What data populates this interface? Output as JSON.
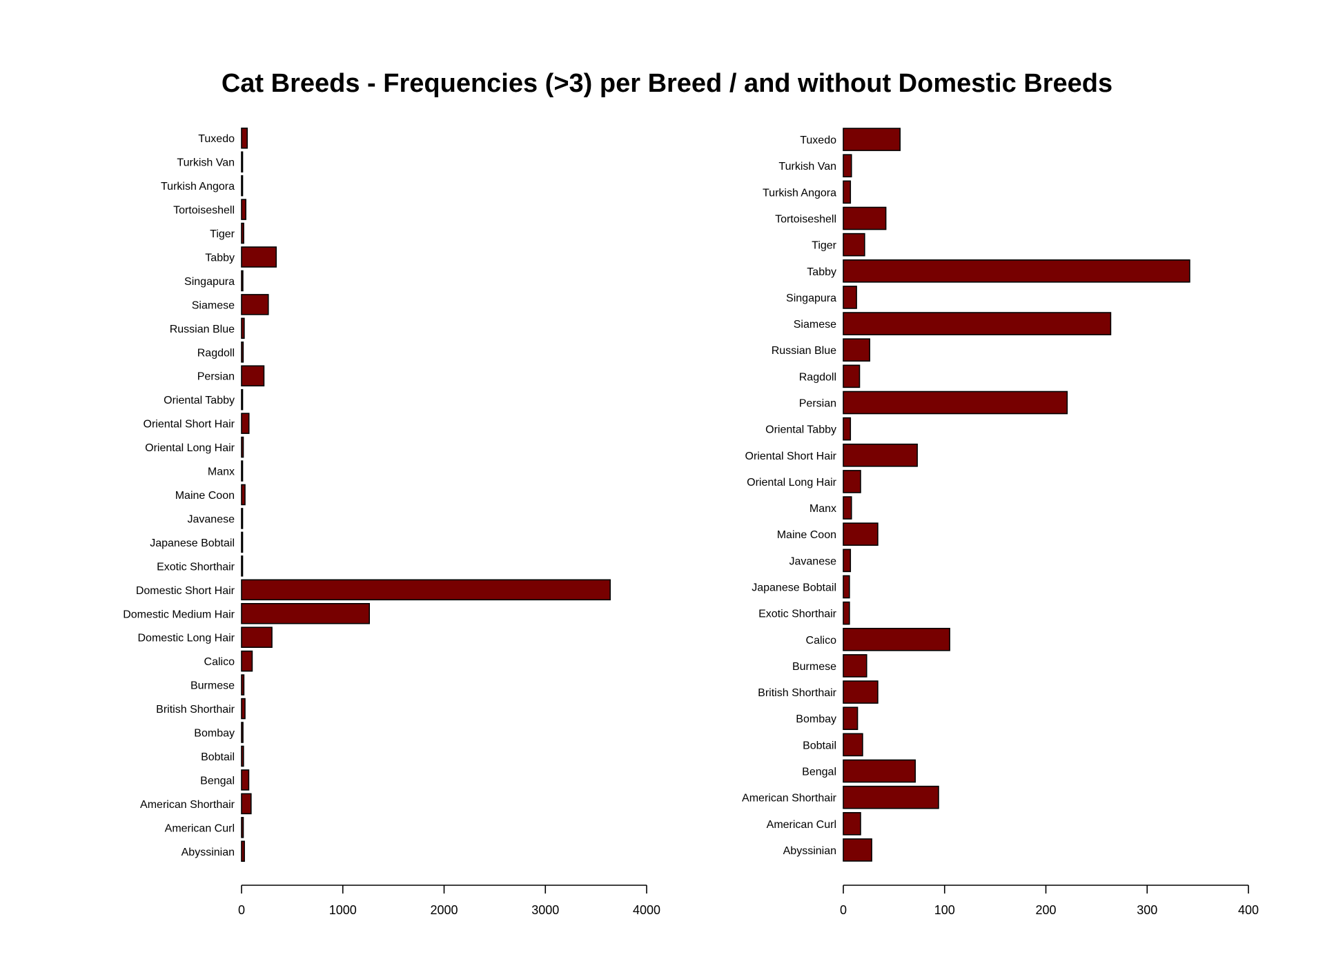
{
  "chart_data": {
    "type": "bar",
    "orientation": "horizontal",
    "title": "Cat Breeds - Frequencies (>3) per Breed / and without Domestic Breeds",
    "bar_color": "#770000",
    "bar_border_color": "#000000",
    "grid": false,
    "legend": "none",
    "panels": [
      {
        "name": "",
        "categories": [
          "Tuxedo",
          "Turkish Van",
          "Turkish Angora",
          "Tortoiseshell",
          "Tiger",
          "Tabby",
          "Singapura",
          "Siamese",
          "Russian Blue",
          "Ragdoll",
          "Persian",
          "Oriental Tabby",
          "Oriental Short Hair",
          "Oriental Long Hair",
          "Manx",
          "Maine Coon",
          "Javanese",
          "Japanese Bobtail",
          "Exotic Shorthair",
          "Domestic Short Hair",
          "Domestic Medium Hair",
          "Domestic Long Hair",
          "Calico",
          "Burmese",
          "British Shorthair",
          "Bombay",
          "Bobtail",
          "Bengal",
          "American Shorthair",
          "American Curl",
          "Abyssinian"
        ],
        "values": [
          56,
          8,
          7,
          42,
          21,
          342,
          13,
          264,
          26,
          16,
          221,
          7,
          73,
          17,
          8,
          34,
          7,
          6,
          6,
          3640,
          1262,
          300,
          105,
          23,
          34,
          14,
          19,
          71,
          94,
          17,
          28
        ],
        "xlim": [
          0,
          4000
        ],
        "xticks": [
          "0",
          "1000",
          "2000",
          "3000",
          "4000"
        ],
        "xlabel": "",
        "ylabel": ""
      },
      {
        "name": "",
        "categories": [
          "Tuxedo",
          "Turkish Van",
          "Turkish Angora",
          "Tortoiseshell",
          "Tiger",
          "Tabby",
          "Singapura",
          "Siamese",
          "Russian Blue",
          "Ragdoll",
          "Persian",
          "Oriental Tabby",
          "Oriental Short Hair",
          "Oriental Long Hair",
          "Manx",
          "Maine Coon",
          "Javanese",
          "Japanese Bobtail",
          "Exotic Shorthair",
          "Calico",
          "Burmese",
          "British Shorthair",
          "Bombay",
          "Bobtail",
          "Bengal",
          "American Shorthair",
          "American Curl",
          "Abyssinian"
        ],
        "values": [
          56,
          8,
          7,
          42,
          21,
          342,
          13,
          264,
          26,
          16,
          221,
          7,
          73,
          17,
          8,
          34,
          7,
          6,
          6,
          105,
          23,
          34,
          14,
          19,
          71,
          94,
          17,
          28
        ],
        "xlim": [
          0,
          400
        ],
        "xticks": [
          "0",
          "100",
          "200",
          "300",
          "400"
        ],
        "xlabel": "",
        "ylabel": ""
      }
    ]
  }
}
